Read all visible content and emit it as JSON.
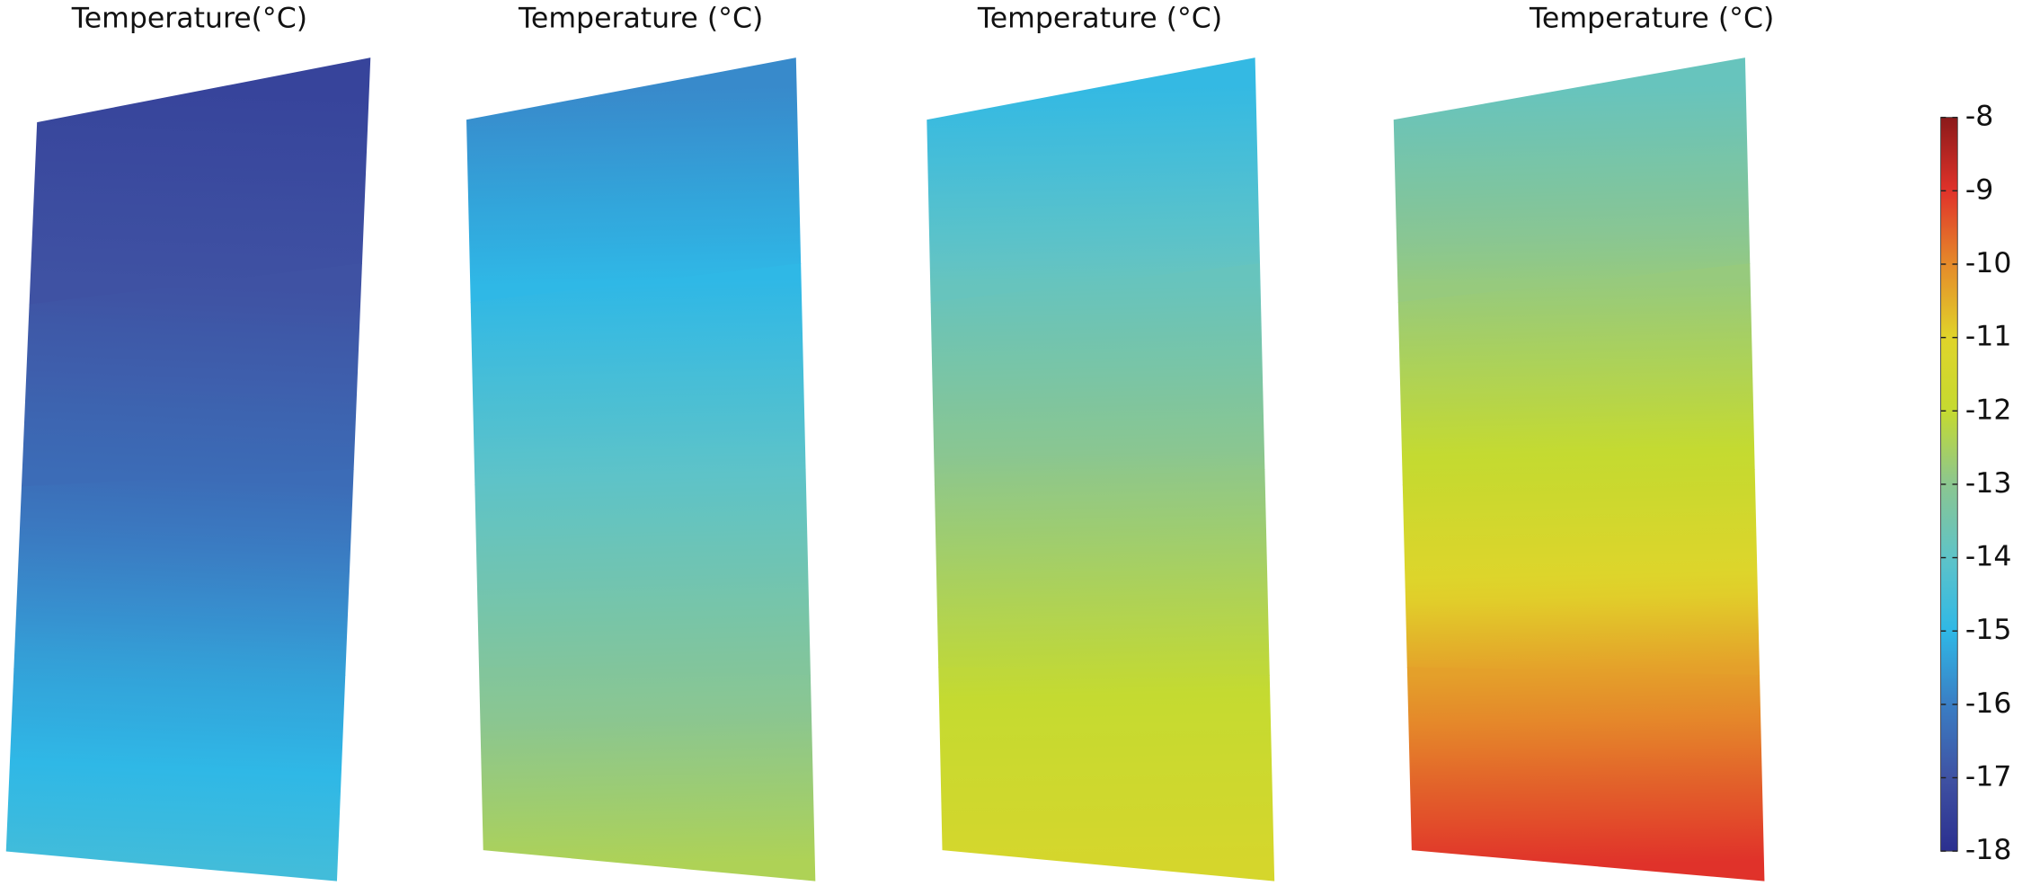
{
  "chart_data": {
    "type": "surface",
    "panels": [
      {
        "title": "Temperature(°C)",
        "values": [
          -17.4,
          -17.0,
          -16.4,
          -15.4,
          -14.6
        ]
      },
      {
        "title": "Temperature (°C)",
        "values": [
          -15.8,
          -15.0,
          -14.0,
          -13.2,
          -12.4
        ]
      },
      {
        "title": "Temperature (°C)",
        "values": [
          -14.9,
          -13.8,
          -12.9,
          -12.1,
          -11.4
        ]
      },
      {
        "title": "Temperature (°C)",
        "values": [
          -13.8,
          -12.8,
          -11.9,
          -10.3,
          -9.0
        ]
      }
    ],
    "colormap": [
      "#2b2f8f",
      "#3f52a3",
      "#3a7ec4",
      "#2fb8e6",
      "#5ec3c8",
      "#8bc690",
      "#c5da30",
      "#e0d42a",
      "#e58a2a",
      "#e0322a",
      "#8b1a1a"
    ],
    "ylim": [
      -18,
      -8
    ],
    "yticks": [
      -18,
      -17,
      -16,
      -15,
      -14,
      -13,
      -12,
      -11,
      -10,
      -9,
      -8
    ]
  }
}
